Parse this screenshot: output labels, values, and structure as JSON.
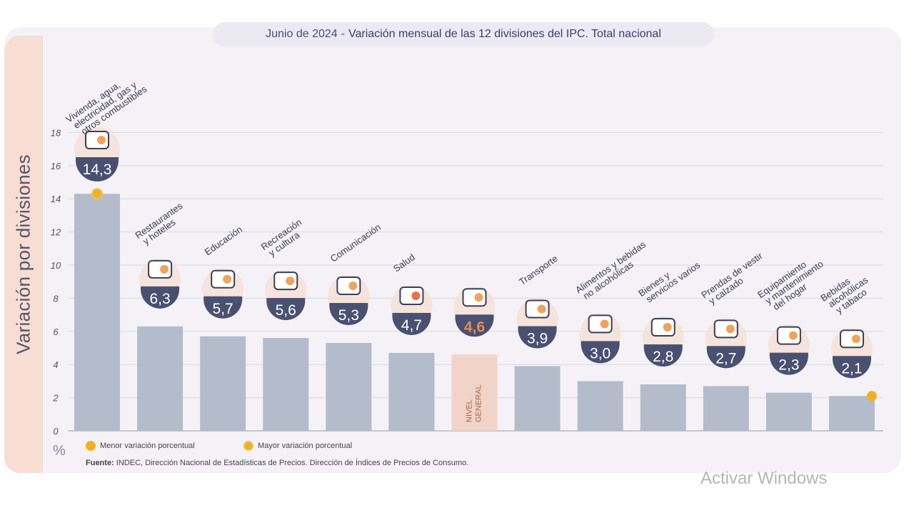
{
  "title": {
    "date": "Junio de 2024",
    "separator": "-",
    "text": "Variación mensual de las 12 divisiones del IPC. Total nacional"
  },
  "chart_data": {
    "type": "bar",
    "title": "Junio de 2024 - Variación mensual de las 12 divisiones del IPC. Total nacional",
    "ylabel": "Variación por divisiones",
    "yunit": "%",
    "ylim": [
      0,
      18
    ],
    "yticks": [
      "0",
      "2",
      "4",
      "6",
      "8",
      "10",
      "12",
      "14",
      "16",
      "18"
    ],
    "categories": [
      [
        "Vivienda, agua,",
        "electricidad, gas y",
        "otros combustibles"
      ],
      [
        "Restaurantes",
        "y hoteles"
      ],
      [
        "Educación"
      ],
      [
        "Recreación",
        "y cultura"
      ],
      [
        "Comunicación"
      ],
      [
        "Salud"
      ],
      [],
      [
        "Transporte"
      ],
      [
        "Alimentos y bebidas",
        "no alcohólicas"
      ],
      [
        "Bienes y",
        "servicios varios"
      ],
      [
        "Prendas de vestir",
        "y calzado"
      ],
      [
        "Equipamiento",
        "y mantenimiento",
        "del hogar"
      ],
      [
        "Bebidas",
        "alcohólicas",
        "y tabaco"
      ]
    ],
    "values": [
      14.3,
      6.3,
      5.7,
      5.6,
      5.3,
      4.7,
      4.6,
      3.9,
      3.0,
      2.8,
      2.7,
      2.3,
      2.1
    ],
    "value_labels": [
      "14,3",
      "6,3",
      "5,7",
      "5,6",
      "5,3",
      "4,7",
      "4,6",
      "3,9",
      "3,0",
      "2,8",
      "2,7",
      "2,3",
      "2,1"
    ],
    "icons": [
      "house-utilities-icon",
      "restaurant-icon",
      "education-icon",
      "recreation-icon",
      "phone-icon",
      "health-cross-icon",
      "shopping-basket-icon",
      "car-icon",
      "food-icon",
      "comb-scissors-icon",
      "clothing-icon",
      "appliance-icon",
      "wine-icon"
    ],
    "highlight_label": [
      "NIVEL",
      "GENERAL"
    ],
    "highlight_index": 6,
    "max_index": 0,
    "min_index": 12
  },
  "legend": {
    "min_label": "Menor variación porcentual",
    "max_label": "Mayor variación porcentual"
  },
  "source": {
    "label": "Fuente:",
    "text": "INDEC, Dirección Nacional de Estadísticas de Precios. Dirección de Índices de Precios de Consumo."
  },
  "colors": {
    "bar": "#b4bccb",
    "highlight_bar": "#f1d3c7",
    "badge": "#4a5070",
    "highlight_value": "#e88b52",
    "dot": "#f2b01e",
    "grid": "#d8d8de"
  },
  "watermark": "Activar Windows"
}
